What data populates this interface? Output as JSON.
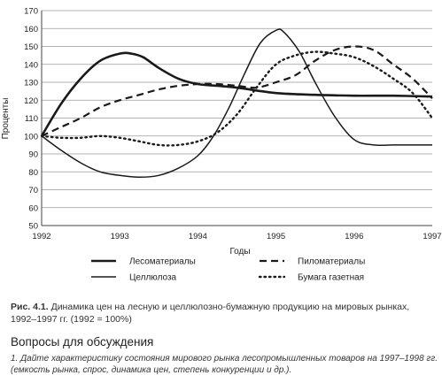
{
  "chart_data": {
    "type": "line",
    "title": "",
    "xlabel": "Годы",
    "ylabel": "Проценты",
    "xlim": [
      1992,
      1997
    ],
    "ylim": [
      50,
      170
    ],
    "xticks": [
      1992,
      1993,
      1994,
      1995,
      1996,
      1997
    ],
    "yticks": [
      50,
      60,
      70,
      80,
      90,
      100,
      110,
      120,
      130,
      140,
      150,
      160,
      170
    ],
    "grid": "horizontal",
    "legend_position": "bottom",
    "series": [
      {
        "name": "Лесоматериалы",
        "style": "solid-thick",
        "x": [
          1992,
          1992.25,
          1992.5,
          1992.75,
          1993,
          1993.15,
          1993.3,
          1993.5,
          1993.75,
          1994,
          1994.25,
          1994.5,
          1995,
          1995.5,
          1996,
          1996.5,
          1997
        ],
        "y": [
          100,
          118,
          132,
          142,
          146,
          146,
          144,
          138,
          132,
          129,
          128,
          127,
          124,
          123,
          122.5,
          122.5,
          122
        ]
      },
      {
        "name": "Целлюлоза",
        "style": "solid",
        "x": [
          1992,
          1992.25,
          1992.5,
          1992.75,
          1993,
          1993.25,
          1993.5,
          1993.75,
          1994,
          1994.2,
          1994.4,
          1994.6,
          1994.8,
          1995,
          1995.1,
          1995.3,
          1995.5,
          1995.75,
          1996,
          1996.25,
          1996.5,
          1996.75,
          1997
        ],
        "y": [
          100,
          92,
          85,
          80,
          78,
          77,
          78,
          82,
          89,
          100,
          116,
          135,
          152,
          159,
          158,
          147,
          130,
          111,
          98,
          95,
          95,
          95,
          95
        ]
      },
      {
        "name": "Пиломатериалы",
        "style": "dashed",
        "x": [
          1992,
          1992.25,
          1992.5,
          1992.75,
          1993,
          1993.25,
          1993.5,
          1993.75,
          1994,
          1994.25,
          1994.5,
          1994.75,
          1995,
          1995.25,
          1995.5,
          1995.75,
          1996,
          1996.25,
          1996.5,
          1996.75,
          1997
        ],
        "y": [
          100,
          105,
          110,
          116,
          120,
          123,
          126,
          128,
          129,
          129,
          128,
          127,
          130,
          134,
          142,
          148,
          150,
          148,
          140,
          132,
          121
        ]
      },
      {
        "name": "Бумага газетная",
        "style": "dotted",
        "x": [
          1992,
          1992.25,
          1992.5,
          1992.75,
          1993,
          1993.25,
          1993.5,
          1993.75,
          1994,
          1994.25,
          1994.5,
          1994.75,
          1995,
          1995.25,
          1995.5,
          1995.75,
          1996,
          1996.25,
          1996.5,
          1996.75,
          1997
        ],
        "y": [
          100,
          99,
          99,
          100,
          99,
          97,
          95,
          95,
          97,
          102,
          112,
          127,
          140,
          145,
          147,
          146,
          144,
          139,
          132,
          124,
          110
        ]
      }
    ]
  },
  "caption": {
    "figure_label": "Рис. 4.1.",
    "text": "Динамика цен на лесную и целлюлозно-бумажную продукцию на мировых рынках, 1992–1997 гг. (1992 = 100%)"
  },
  "section_heading": "Вопросы для обсуждения",
  "question": "1. Дайте характеристику состояния мирового рынка лесопромышленных товаров на 1997–1998 гг. (емкость рынка, спрос, динамика цен, степень конкуренции и др.)."
}
